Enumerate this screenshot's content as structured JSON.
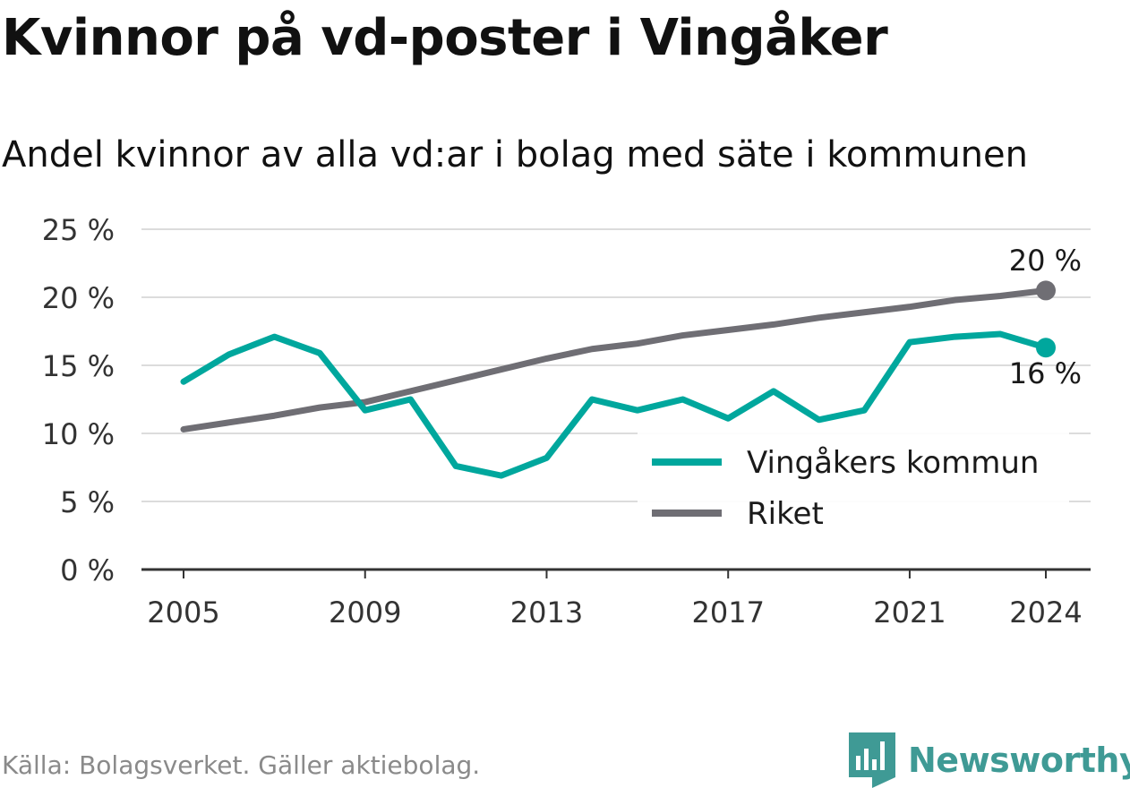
{
  "title": "Kvinnor på vd-poster i Vingåker",
  "subtitle": "Andel kvinnor av alla vd:ar i bolag med säte i kommunen",
  "source": "Källa: Bolagsverket. Gäller aktiebolag.",
  "brand": "Newsworthy",
  "chart_data": {
    "type": "line",
    "x": [
      2005,
      2006,
      2007,
      2008,
      2009,
      2010,
      2011,
      2012,
      2013,
      2014,
      2015,
      2016,
      2017,
      2018,
      2019,
      2020,
      2021,
      2022,
      2023,
      2024
    ],
    "series": [
      {
        "name": "Vingåkers kommun",
        "color": "#00a79d",
        "values": [
          13.8,
          15.8,
          17.1,
          15.9,
          11.7,
          12.5,
          7.6,
          6.9,
          8.2,
          12.5,
          11.7,
          12.5,
          11.1,
          13.1,
          11.0,
          11.7,
          16.7,
          17.1,
          17.3,
          16.3
        ],
        "end_label": "16 %"
      },
      {
        "name": "Riket",
        "color": "#6f6e74",
        "values": [
          10.3,
          10.8,
          11.3,
          11.9,
          12.3,
          13.1,
          13.9,
          14.7,
          15.5,
          16.2,
          16.6,
          17.2,
          17.6,
          18.0,
          18.5,
          18.9,
          19.3,
          19.8,
          20.1,
          20.5
        ],
        "end_label": "20 %"
      }
    ],
    "y_ticks": [
      "0 %",
      "5 %",
      "10 %",
      "15 %",
      "20 %",
      "25 %"
    ],
    "x_ticks": [
      "2005",
      "2009",
      "2013",
      "2017",
      "2021",
      "2024"
    ],
    "ylim": [
      0,
      25
    ],
    "xlim": [
      2005,
      2024
    ],
    "grid": true,
    "legend_position": "bottom-right"
  }
}
